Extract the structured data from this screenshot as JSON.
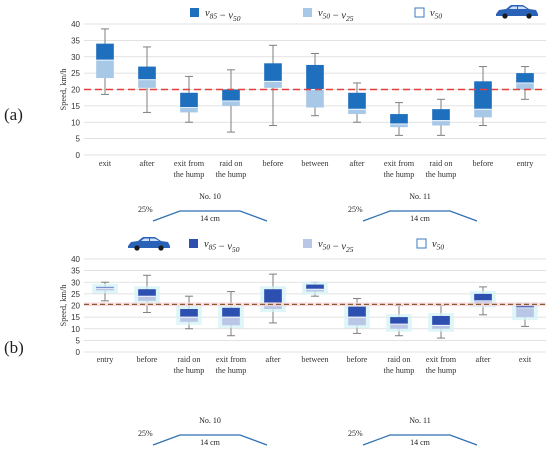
{
  "colors": {
    "dark": "#1f6fbf",
    "light": "#a8c8e8",
    "median_edge": "#3a78c2",
    "whisker": "#7f7f7f",
    "limit_a": "#e0413d",
    "limit_b": "#8c5a2a",
    "car": "#2a62b8",
    "grid": "#d9d9d9",
    "hump_line": "#2e6fb5",
    "glow_b": "#d4f3f7",
    "dark_b": "#2c4fb0",
    "light_b": "#b9c6e6"
  },
  "car_icon": "car-icon",
  "chart_data": [
    {
      "type": "box",
      "panel_label": "(a)",
      "ylabel": "Speed, km/h",
      "ylim": [
        0,
        40
      ],
      "ytick_step": 5,
      "grid": true,
      "legend_position": "top",
      "legend": [
        "v85 − v50",
        "v50 − v25",
        "v50"
      ],
      "speed_limit": 20,
      "categories": [
        "exit",
        "after",
        "exit from\nthe hump",
        "raid on\nthe hump",
        "before",
        "between",
        "after",
        "exit from\nthe hump",
        "raid on\nthe hump",
        "before",
        "entry"
      ],
      "min": [
        18.5,
        13,
        10,
        7,
        9,
        12,
        10,
        6,
        6,
        9,
        17
      ],
      "q1": [
        23.5,
        20.5,
        13,
        15,
        20.5,
        14.5,
        12.5,
        8.5,
        9,
        11.5,
        20
      ],
      "median": [
        29,
        23,
        14.5,
        16.5,
        22.5,
        20,
        14,
        9.5,
        10.5,
        14,
        22
      ],
      "q3": [
        34,
        27,
        19,
        20,
        28,
        27.5,
        19,
        12.5,
        14,
        22.5,
        25
      ],
      "max": [
        38.5,
        33,
        24,
        26,
        33.5,
        31,
        22,
        16,
        17,
        27,
        27
      ],
      "groups": [
        {
          "label": "No. 10",
          "from": 2,
          "to": 3,
          "pct": "25%",
          "width": "14 cm"
        },
        {
          "label": "No. 11",
          "from": 7,
          "to": 8,
          "pct": "25%",
          "width": "14 cm"
        }
      ]
    },
    {
      "type": "box",
      "panel_label": "(b)",
      "ylabel": "Speed, km/h",
      "ylim": [
        0,
        40
      ],
      "ytick_step": 5,
      "grid": true,
      "legend_position": "top",
      "legend": [
        "v85 − v50",
        "v50 − v25",
        "v50"
      ],
      "speed_limit": 20.5,
      "categories": [
        "entry",
        "before",
        "raid on\nthe hump",
        "exit from\nthe hump",
        "after",
        "between",
        "before",
        "raid on\nthe hump",
        "exit from\nthe hump",
        "after",
        "exit"
      ],
      "min": [
        22,
        17,
        10,
        7,
        12.5,
        24,
        8,
        7,
        6,
        16,
        11
      ],
      "q1": [
        26.5,
        22,
        13,
        11.5,
        18.5,
        26,
        11.5,
        10,
        10,
        20.5,
        15
      ],
      "median": [
        27.5,
        24,
        15,
        15,
        21,
        27,
        15,
        12,
        11.5,
        22,
        19
      ],
      "q3": [
        28,
        27,
        18.5,
        19,
        27,
        29,
        19.5,
        15,
        15.5,
        25,
        20
      ],
      "max": [
        30,
        33,
        24,
        26,
        33.5,
        30,
        23,
        20,
        20,
        28,
        21
      ],
      "groups": [
        {
          "label": "No. 10",
          "from": 2,
          "to": 3,
          "pct": "25%",
          "width": "14 cm"
        },
        {
          "label": "No. 11",
          "from": 7,
          "to": 8,
          "pct": "25%",
          "width": "14 cm"
        }
      ]
    }
  ]
}
